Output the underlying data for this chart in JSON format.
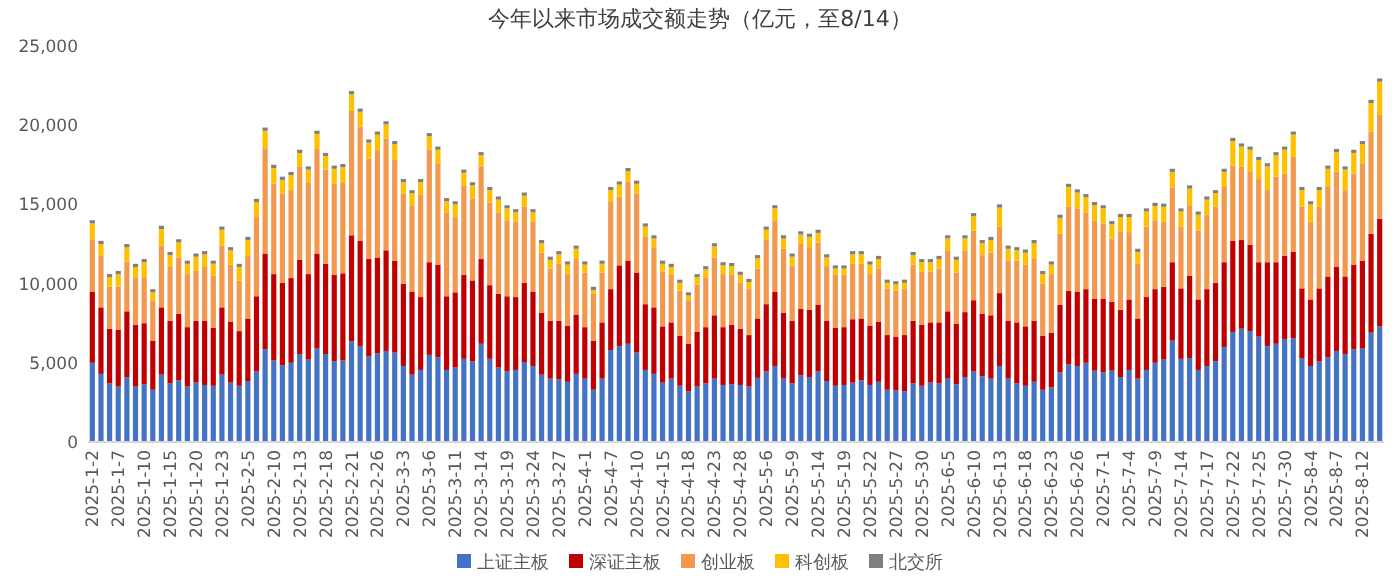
{
  "chart_data": {
    "type": "bar",
    "stacked": true,
    "title": "今年以来市场成交额走势（亿元，至8/14）",
    "legend": "bottom",
    "categories": [
      "2025-1-2",
      null,
      null,
      "2025-1-7",
      null,
      null,
      "2025-1-10",
      null,
      null,
      "2025-1-15",
      null,
      null,
      "2025-1-20",
      null,
      null,
      "2025-1-23",
      null,
      null,
      "2025-2-5",
      null,
      null,
      "2025-2-10",
      null,
      null,
      "2025-2-13",
      null,
      null,
      "2025-2-18",
      null,
      null,
      "2025-2-21",
      null,
      null,
      "2025-2-26",
      null,
      null,
      "2025-3-3",
      null,
      null,
      "2025-3-6",
      null,
      null,
      "2025-3-11",
      null,
      null,
      "2025-3-14",
      null,
      null,
      "2025-3-19",
      null,
      null,
      "2025-3-24",
      null,
      null,
      "2025-3-27",
      null,
      null,
      "2025-4-1",
      null,
      null,
      "2025-4-7",
      null,
      null,
      "2025-4-10",
      null,
      null,
      "2025-4-15",
      null,
      null,
      "2025-4-18",
      null,
      null,
      "2025-4-23",
      null,
      null,
      "2025-4-28",
      null,
      null,
      "2025-5-6",
      null,
      null,
      "2025-5-9",
      null,
      null,
      "2025-5-14",
      null,
      null,
      "2025-5-19",
      null,
      null,
      "2025-5-22",
      null,
      null,
      "2025-5-27",
      null,
      null,
      "2025-5-30",
      null,
      null,
      "2025-6-5",
      null,
      null,
      "2025-6-10",
      null,
      null,
      "2025-6-13",
      null,
      null,
      "2025-6-18",
      null,
      null,
      "2025-6-23",
      null,
      null,
      "2025-6-26",
      null,
      null,
      "2025-7-1",
      null,
      null,
      "2025-7-4",
      null,
      null,
      "2025-7-9",
      null,
      null,
      "2025-7-14",
      null,
      null,
      "2025-7-17",
      null,
      null,
      "2025-7-22",
      null,
      null,
      "2025-7-25",
      null,
      null,
      "2025-7-30",
      null,
      null,
      "2025-8-4",
      null,
      null,
      "2025-8-7",
      null,
      null,
      "2025-8-12",
      null,
      null
    ],
    "ylim": [
      0,
      25000
    ],
    "yticks": [
      0,
      {
        "value": 5000,
        "label": "5,000"
      },
      {
        "value": 10000,
        "label": "10,000"
      },
      {
        "value": 15000,
        "label": "15,000"
      },
      {
        "value": 20000,
        "label": "20,000"
      },
      {
        "value": 25000,
        "label": "25,000"
      }
    ],
    "series": [
      {
        "name": "上证主板",
        "color": "#4472c4",
        "values": [
          5000,
          4300,
          3700,
          3500,
          4100,
          3500,
          3650,
          3300,
          4250,
          3700,
          3900,
          3500,
          3750,
          3600,
          3550,
          4250,
          3750,
          3550,
          3850,
          4450,
          5850,
          5150,
          4850,
          5000,
          5550,
          5200,
          5900,
          5550,
          5100,
          5150,
          6350,
          6050,
          5400,
          5600,
          5750,
          5650,
          4800,
          4250,
          4550,
          5500,
          5350,
          4550,
          4700,
          5250,
          5100,
          6200,
          5250,
          4700,
          4450,
          4550,
          5050,
          4800,
          4250,
          4000,
          3950,
          3800,
          4300,
          4000,
          3300,
          4000,
          5800,
          6050,
          6200,
          5650,
          4550,
          4300,
          3750,
          4000,
          3550,
          3200,
          3500,
          3700,
          4000,
          3600,
          3650,
          3600,
          3500,
          4050,
          4450,
          4800,
          4000,
          3700,
          4200,
          4100,
          4450,
          3850,
          3550,
          3600,
          3750,
          3900,
          3600,
          3800,
          3300,
          3250,
          3200,
          3700,
          3550,
          3750,
          3700,
          4000,
          3650,
          4100,
          4450,
          4150,
          4000,
          4800,
          4000,
          3700,
          3550,
          3800,
          3300,
          3450,
          4400,
          4900,
          4800,
          5000,
          4500,
          4400,
          4500,
          4100,
          4550,
          4000,
          4550,
          5000,
          5200,
          6400,
          5250,
          5300,
          4550,
          4800,
          5100,
          6000,
          6950,
          7150,
          7000,
          6650,
          6050,
          6200,
          6500,
          6550,
          5300,
          4800,
          5100,
          5350,
          5750,
          5550,
          5850,
          5900,
          6900,
          7300
        ]
      },
      {
        "name": "深证主板",
        "color": "#c00000",
        "values": [
          4500,
          4200,
          3450,
          3600,
          4150,
          3900,
          3850,
          3100,
          4250,
          3950,
          4200,
          3750,
          3900,
          4050,
          3650,
          4250,
          3850,
          3450,
          3950,
          4750,
          6050,
          5450,
          5200,
          5350,
          5950,
          5400,
          6000,
          5700,
          5450,
          5500,
          6700,
          6650,
          6150,
          6050,
          6350,
          5800,
          5200,
          5250,
          4600,
          5850,
          5850,
          4650,
          4750,
          5300,
          5100,
          5350,
          4650,
          4650,
          4750,
          4600,
          5000,
          4700,
          3900,
          3650,
          3700,
          3550,
          3750,
          3250,
          3100,
          3550,
          3850,
          5100,
          5250,
          5050,
          4150,
          4200,
          3550,
          3550,
          3150,
          3000,
          3450,
          3550,
          4000,
          3650,
          3750,
          3550,
          3250,
          3750,
          4250,
          4700,
          4150,
          3950,
          4200,
          4250,
          4200,
          3800,
          3650,
          3650,
          4000,
          3900,
          3750,
          3800,
          3450,
          3400,
          3550,
          3950,
          3850,
          3800,
          3850,
          4250,
          3800,
          4100,
          4500,
          3950,
          4000,
          4600,
          3650,
          3850,
          3750,
          3850,
          3400,
          3450,
          4250,
          4650,
          4700,
          4650,
          4550,
          4650,
          4350,
          4250,
          4450,
          3800,
          4600,
          4650,
          4600,
          4950,
          4450,
          5200,
          4450,
          4850,
          4950,
          5350,
          5750,
          5600,
          5450,
          4700,
          5300,
          5150,
          5250,
          5450,
          4400,
          4200,
          4600,
          5100,
          5300,
          4900,
          5350,
          5550,
          6250,
          6800
        ]
      },
      {
        "name": "创业板",
        "color": "#f3994f",
        "values": [
          3300,
          3250,
          2650,
          2700,
          3150,
          3000,
          2900,
          2500,
          3900,
          3400,
          3550,
          3350,
          3150,
          3400,
          3300,
          3900,
          3600,
          3200,
          3950,
          5000,
          6650,
          5700,
          5650,
          5550,
          5900,
          5750,
          6600,
          5950,
          5750,
          5750,
          7850,
          7200,
          6350,
          6800,
          7050,
          6350,
          5700,
          5450,
          6450,
          7100,
          6400,
          5300,
          4750,
          5650,
          5150,
          5850,
          5200,
          5150,
          4800,
          4750,
          4800,
          4400,
          3800,
          3300,
          3600,
          3250,
          3500,
          3450,
          2950,
          3150,
          5550,
          4350,
          5000,
          5000,
          4250,
          3800,
          3450,
          3000,
          2850,
          2750,
          3000,
          3150,
          3650,
          3350,
          3150,
          2900,
          2950,
          3150,
          4050,
          4500,
          4050,
          3450,
          4100,
          3950,
          3950,
          3450,
          3350,
          3300,
          3500,
          3450,
          3250,
          3350,
          2950,
          2900,
          2900,
          3550,
          3350,
          3200,
          3400,
          3850,
          3250,
          3900,
          4400,
          3700,
          3950,
          4200,
          3800,
          3900,
          3900,
          3950,
          3300,
          3700,
          4500,
          5300,
          5250,
          4850,
          4950,
          4750,
          4000,
          4950,
          4250,
          3450,
          4450,
          4350,
          4100,
          4700,
          3900,
          4450,
          4350,
          4700,
          4800,
          4750,
          4750,
          4650,
          4600,
          5250,
          4550,
          5400,
          5200,
          6000,
          5150,
          4900,
          5150,
          5650,
          6000,
          5450,
          5750,
          6150,
          6450,
          6550
        ]
      },
      {
        "name": "科创板",
        "color": "#ffc000",
        "values": [
          1000,
          750,
          600,
          800,
          900,
          650,
          950,
          550,
          1050,
          750,
          950,
          650,
          900,
          800,
          750,
          1000,
          900,
          850,
          1000,
          950,
          1100,
          1000,
          850,
          950,
          850,
          850,
          950,
          850,
          950,
          950,
          1050,
          950,
          1000,
          950,
          900,
          1000,
          700,
          750,
          800,
          850,
          850,
          700,
          800,
          800,
          850,
          700,
          800,
          800,
          750,
          600,
          700,
          600,
          600,
          550,
          600,
          600,
          650,
          500,
          250,
          550,
          700,
          750,
          650,
          600,
          650,
          550,
          500,
          500,
          500,
          300,
          450,
          500,
          700,
          550,
          550,
          500,
          400,
          650,
          650,
          750,
          650,
          600,
          600,
          650,
          600,
          550,
          400,
          400,
          600,
          600,
          600,
          600,
          350,
          400,
          400,
          600,
          600,
          600,
          600,
          750,
          800,
          750,
          900,
          750,
          800,
          1200,
          750,
          650,
          750,
          950,
          600,
          600,
          1000,
          1250,
          1000,
          950,
          950,
          950,
          900,
          900,
          950,
          750,
          950,
          900,
          950,
          1000,
          950,
          1050,
          1000,
          950,
          850,
          950,
          1550,
          1250,
          1400,
          1200,
          1500,
          1350,
          1500,
          1400,
          1050,
          1100,
          1050,
          1150,
          1250,
          1300,
          1300,
          1200,
          1800,
          2100
        ]
      },
      {
        "name": "北交所",
        "color": "#7f7f7f",
        "values": [
          200,
          200,
          200,
          200,
          200,
          200,
          200,
          200,
          200,
          200,
          200,
          200,
          200,
          200,
          200,
          200,
          200,
          200,
          200,
          200,
          200,
          200,
          200,
          200,
          200,
          200,
          200,
          200,
          200,
          200,
          200,
          200,
          200,
          200,
          200,
          200,
          200,
          200,
          200,
          200,
          200,
          200,
          200,
          200,
          200,
          200,
          200,
          200,
          200,
          200,
          200,
          200,
          200,
          200,
          200,
          200,
          200,
          200,
          200,
          200,
          200,
          200,
          200,
          200,
          200,
          200,
          200,
          200,
          200,
          200,
          200,
          200,
          200,
          200,
          200,
          200,
          200,
          200,
          200,
          200,
          200,
          200,
          200,
          200,
          200,
          200,
          200,
          200,
          200,
          200,
          200,
          200,
          200,
          200,
          200,
          200,
          200,
          200,
          200,
          200,
          200,
          200,
          200,
          200,
          200,
          200,
          200,
          200,
          200,
          200,
          200,
          200,
          200,
          200,
          200,
          200,
          200,
          200,
          200,
          200,
          200,
          200,
          200,
          200,
          200,
          200,
          200,
          200,
          200,
          200,
          200,
          200,
          200,
          200,
          200,
          200,
          200,
          200,
          200,
          200,
          200,
          200,
          200,
          200,
          200,
          200,
          200,
          200,
          200,
          200
        ]
      }
    ]
  }
}
